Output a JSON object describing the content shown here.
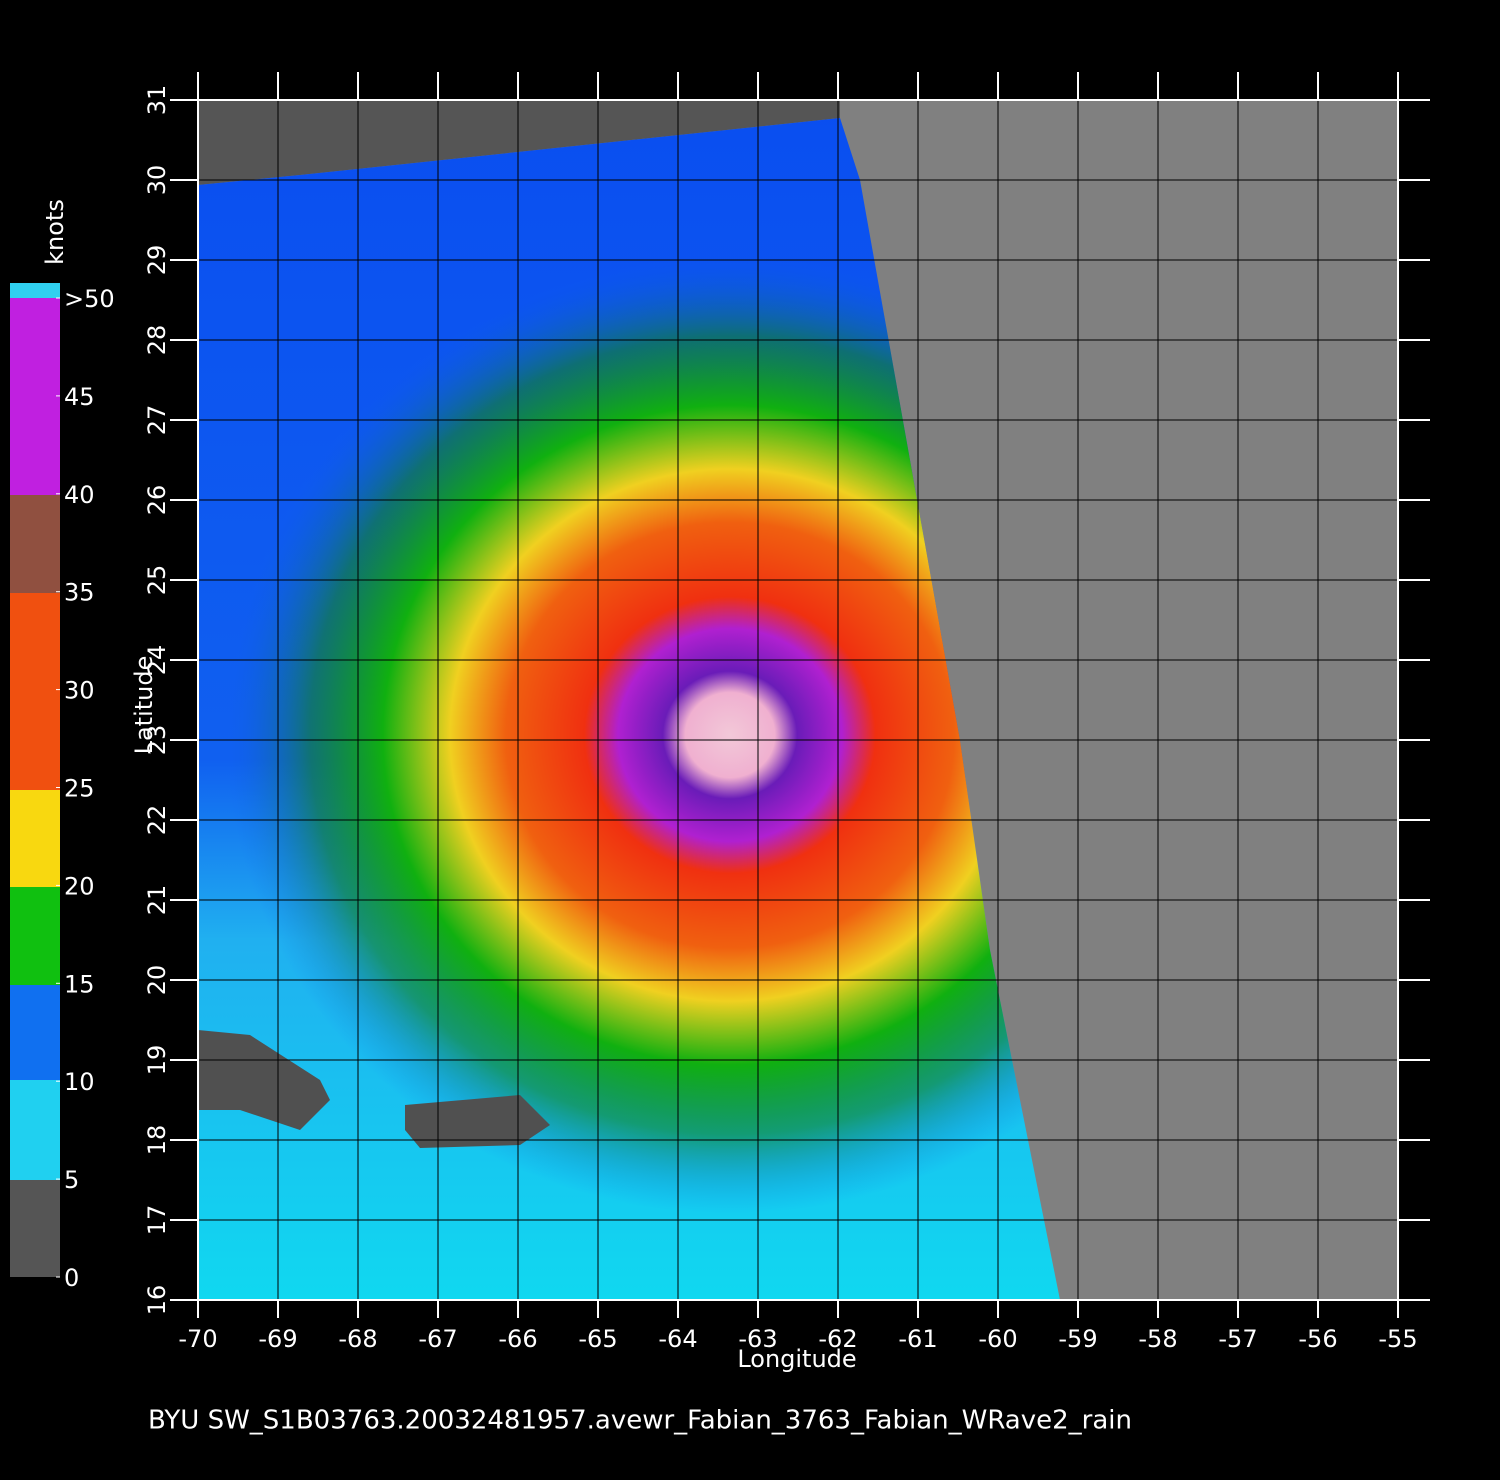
{
  "map": {
    "xlabel": "Longitude",
    "ylabel": "Latitude",
    "xlim": [
      -70,
      -55
    ],
    "ylim": [
      16,
      31
    ],
    "xticks": [
      -70,
      -69,
      -68,
      -67,
      -66,
      -65,
      -64,
      -63,
      -62,
      -61,
      -60,
      -59,
      -58,
      -57,
      -56,
      -55
    ],
    "yticks": [
      16,
      17,
      18,
      19,
      20,
      21,
      22,
      23,
      24,
      25,
      26,
      27,
      28,
      29,
      30,
      31
    ],
    "grid": true
  },
  "colorbar": {
    "unit": "knots",
    "lim": [
      0,
      50
    ],
    "ticks": [
      0,
      5,
      10,
      15,
      20,
      25,
      30,
      35,
      40,
      45,
      {
        "value": 50,
        "label": ">50"
      }
    ]
  },
  "caption": "BYU  SW_S1B03763.20032481957.avewr_Fabian_3763_Fabian_WRave2_rain"
}
